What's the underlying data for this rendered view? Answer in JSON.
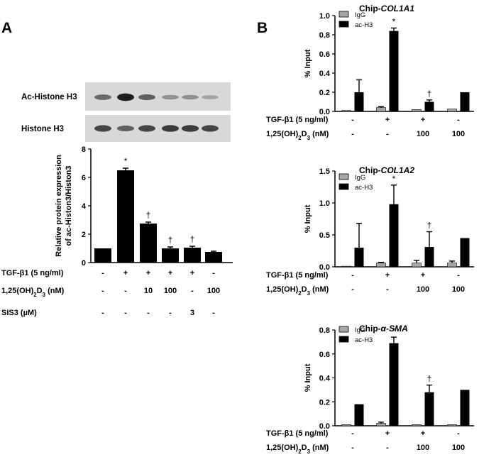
{
  "panels": {
    "A": {
      "letter": "A",
      "blot": {
        "rows": [
          {
            "label": "Ac-Histone  H3",
            "intensities": [
              0.55,
              0.95,
              0.6,
              0.35,
              0.35,
              0.25
            ]
          },
          {
            "label": "Histone H3",
            "intensities": [
              0.75,
              0.6,
              0.75,
              0.8,
              0.8,
              0.75
            ]
          }
        ]
      }
    },
    "B": {
      "letter": "B"
    }
  },
  "chart_data": [
    {
      "id": "A",
      "type": "bar",
      "ylabel": [
        "Relative protein expression",
        "of ac-Histon3/Histon3"
      ],
      "ylim": [
        0,
        8
      ],
      "yticks": [
        "0",
        "2",
        "4",
        "6",
        "8"
      ],
      "values": [
        1.0,
        6.5,
        2.75,
        1.0,
        1.05,
        0.75
      ],
      "errors": [
        0.0,
        0.15,
        0.1,
        0.1,
        0.1,
        0.05
      ],
      "annotations": [
        "",
        "*",
        "†",
        "†",
        "†",
        ""
      ],
      "conditions": [
        {
          "label": "TGF-β1 (5 ng/ml)",
          "values": [
            "-",
            "+",
            "+",
            "+",
            "+",
            "-"
          ]
        },
        {
          "label": "1,25(OH)₂D₃  (nM)",
          "values": [
            "-",
            "-",
            "10",
            "100",
            "-",
            "100"
          ]
        },
        {
          "label": "SIS3 (µM)",
          "values": [
            "-",
            "-",
            "-",
            "-",
            "3",
            "-"
          ]
        }
      ]
    },
    {
      "id": "B1",
      "type": "bar",
      "title": "Chip-COL1A1",
      "title_prefix": "Chip-",
      "title_gene": "COL1A1",
      "ylabel": "% Input",
      "ylim": [
        0,
        1.0
      ],
      "yticks": [
        "0.0",
        "0.2",
        "0.4",
        "0.6",
        "0.8",
        "1.0"
      ],
      "series": [
        {
          "name": "IgG",
          "color": "#a6a6a6",
          "values": [
            0.01,
            0.04,
            0.02,
            0.025
          ],
          "errors": [
            0.0,
            0.01,
            0.0,
            0.0
          ]
        },
        {
          "name": "ac-H3",
          "color": "#000000",
          "values": [
            0.2,
            0.84,
            0.1,
            0.2
          ],
          "errors": [
            0.13,
            0.03,
            0.02,
            0.0
          ]
        }
      ],
      "annotations": [
        "",
        "*",
        "†",
        ""
      ],
      "conditions": [
        {
          "label": "TGF-β1 (5 ng/ml)",
          "values": [
            "-",
            "+",
            "+",
            "-"
          ]
        },
        {
          "label": "1,25(OH)₂D₃  (nM)",
          "values": [
            "-",
            "-",
            "100",
            "100"
          ]
        }
      ]
    },
    {
      "id": "B2",
      "type": "bar",
      "title": "Chip-COL1A2",
      "title_prefix": "Chip-",
      "title_gene": "COL1A2",
      "ylabel": "% Input",
      "ylim": [
        0,
        1.5
      ],
      "yticks": [
        "0.0",
        "0.5",
        "1.0",
        "1.5"
      ],
      "series": [
        {
          "name": "IgG",
          "color": "#a6a6a6",
          "values": [
            0.01,
            0.06,
            0.06,
            0.06
          ],
          "errors": [
            0.0,
            0.01,
            0.04,
            0.03
          ]
        },
        {
          "name": "ac-H3",
          "color": "#000000",
          "values": [
            0.3,
            0.98,
            0.31,
            0.45
          ],
          "errors": [
            0.38,
            0.3,
            0.24,
            0.0
          ]
        }
      ],
      "annotations": [
        "",
        "*",
        "†",
        ""
      ],
      "conditions": [
        {
          "label": "TGF-β1 (5 ng/ml)",
          "values": [
            "-",
            "+",
            "+",
            "-"
          ]
        },
        {
          "label": "1,25(OH)₂D₃  (nM)",
          "values": [
            "-",
            "-",
            "100",
            "100"
          ]
        }
      ]
    },
    {
      "id": "B3",
      "type": "bar",
      "title": "Chip-α-SMA",
      "title_prefix": "Chip-",
      "title_gene": "α-SMA",
      "ylabel": "% Input",
      "ylim": [
        0,
        0.8
      ],
      "yticks": [
        "0.0",
        "0.2",
        "0.4",
        "0.6",
        "0.8"
      ],
      "series": [
        {
          "name": "IgG",
          "color": "#a6a6a6",
          "values": [
            0.01,
            0.02,
            0.01,
            0.01
          ],
          "errors": [
            0.0,
            0.01,
            0.0,
            0.0
          ]
        },
        {
          "name": "ac-H3",
          "color": "#000000",
          "values": [
            0.18,
            0.69,
            0.28,
            0.3
          ],
          "errors": [
            0.0,
            0.05,
            0.06,
            0.0
          ]
        }
      ],
      "annotations": [
        "",
        "*",
        "†",
        ""
      ],
      "conditions": [
        {
          "label": "TGF-β1 (5 ng/ml)",
          "values": [
            "-",
            "+",
            "+",
            "-"
          ]
        },
        {
          "label": "1,25(OH)₂D₃  (nM)",
          "values": [
            "-",
            "-",
            "100",
            "100"
          ]
        }
      ]
    }
  ]
}
